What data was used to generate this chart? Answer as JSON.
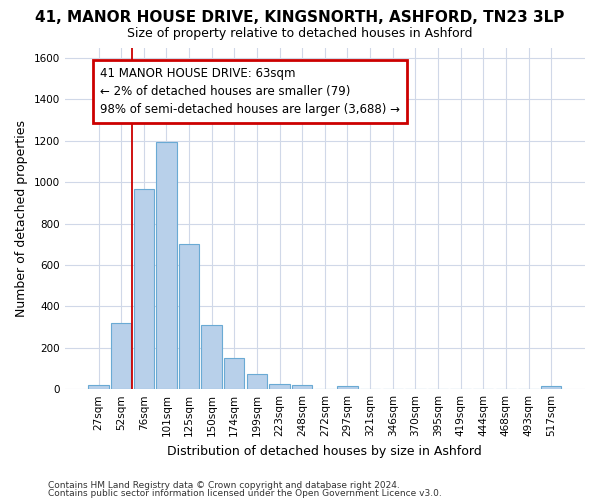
{
  "title_main": "41, MANOR HOUSE DRIVE, KINGSNORTH, ASHFORD, TN23 3LP",
  "title_sub": "Size of property relative to detached houses in Ashford",
  "xlabel": "Distribution of detached houses by size in Ashford",
  "ylabel": "Number of detached properties",
  "bin_labels": [
    "27sqm",
    "52sqm",
    "76sqm",
    "101sqm",
    "125sqm",
    "150sqm",
    "174sqm",
    "199sqm",
    "223sqm",
    "248sqm",
    "272sqm",
    "297sqm",
    "321sqm",
    "346sqm",
    "370sqm",
    "395sqm",
    "419sqm",
    "444sqm",
    "468sqm",
    "493sqm",
    "517sqm"
  ],
  "bar_values": [
    20,
    320,
    965,
    1195,
    700,
    310,
    150,
    75,
    25,
    20,
    0,
    15,
    0,
    0,
    0,
    0,
    0,
    0,
    0,
    0,
    15
  ],
  "bar_color": "#b8d0ea",
  "bar_edge_color": "#6aaad4",
  "red_line_x": 1.5,
  "annotation_text": "41 MANOR HOUSE DRIVE: 63sqm\n← 2% of detached houses are smaller (79)\n98% of semi-detached houses are larger (3,688) →",
  "annotation_box_color": "#ffffff",
  "annotation_box_edge": "#cc0000",
  "ylim": [
    0,
    1650
  ],
  "yticks": [
    0,
    200,
    400,
    600,
    800,
    1000,
    1200,
    1400,
    1600
  ],
  "footer_line1": "Contains HM Land Registry data © Crown copyright and database right 2024.",
  "footer_line2": "Contains public sector information licensed under the Open Government Licence v3.0.",
  "bg_color": "#ffffff",
  "grid_color": "#d0d8e8",
  "title_fontsize": 11,
  "subtitle_fontsize": 9,
  "ylabel_fontsize": 9,
  "xlabel_fontsize": 9,
  "tick_fontsize": 7.5,
  "footer_fontsize": 6.5,
  "annotation_fontsize": 8.5
}
